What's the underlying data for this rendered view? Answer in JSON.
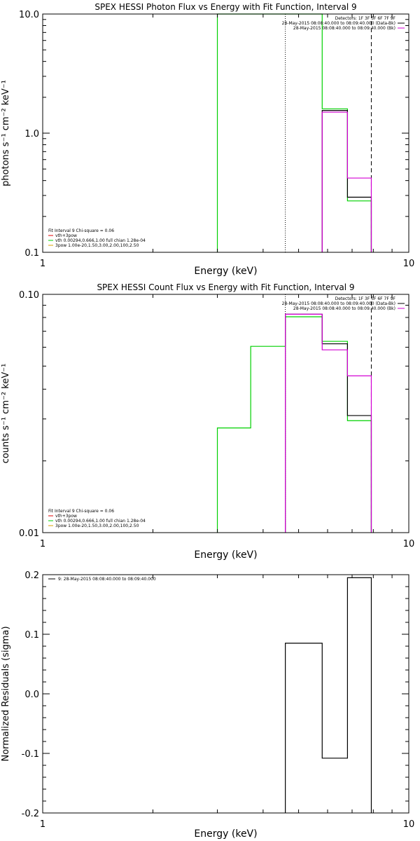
{
  "colors": {
    "background": "#ffffff",
    "axes": "#000000",
    "data_line": "#000000",
    "background_line": "#d400d4",
    "model_line": "#00d000",
    "vth_line": "#e00000",
    "pow_line": "#d8a000"
  },
  "chart_data": [
    {
      "type": "line",
      "title": "SPEX HESSI Photon Flux vs Energy with Fit Function, Interval 9",
      "xlabel": "Energy (keV)",
      "ylabel": "photons s⁻¹ cm⁻² keV⁻¹",
      "x_scale": "log",
      "y_scale": "log",
      "xlim": [
        1,
        10
      ],
      "ylim": [
        0.1,
        10
      ],
      "x_ticks": [
        1,
        10
      ],
      "x_tick_labels": [
        "1",
        "10"
      ],
      "y_ticks": [
        0.1,
        1,
        10
      ],
      "y_tick_labels": [
        "0.1",
        "1.0",
        "10.0"
      ],
      "grid": false,
      "legend_top_right": {
        "position": "top-right",
        "entries": [
          {
            "label": "Detectors: 1F 3F 5F 6F 7F 9F",
            "color": null
          },
          {
            "label": "28-May-2015 08:08:40.000 to 08:09:40.000 (Data-Bk)",
            "color": "#000000"
          },
          {
            "label": "28-May-2015 08:08:40.000 to 08:09:40.000 (Bk)",
            "color": "#d400d4"
          }
        ]
      },
      "legend_bottom_left": {
        "position": "bottom-left",
        "entries": [
          {
            "label": "Fit Interval 9   Chi-square = 0.06",
            "color": null
          },
          {
            "label": "vth+3pow",
            "color": "#e00000"
          },
          {
            "label": "vth 0.00294,0.666,1.00  full chian 1.28e-04",
            "color": "#00d000"
          },
          {
            "label": "3pow 1.00e-20,1.50,3.00,2.00,100,2.50",
            "color": "#d8a000"
          }
        ]
      },
      "vlines": [
        {
          "x": 4.6,
          "style": "dotted",
          "color": "#000000"
        },
        {
          "x": 7.9,
          "style": "dashed",
          "color": "#000000"
        }
      ],
      "series": [
        {
          "role": "model",
          "color": "#00d000",
          "edges": [
            3.0,
            4.6,
            5.8,
            6.8,
            7.9
          ],
          "values": [
            10,
            10,
            1.6,
            0.27
          ]
        },
        {
          "role": "data",
          "color": "#000000",
          "edges": [
            5.8,
            6.8,
            7.9
          ],
          "values": [
            1.55,
            0.29
          ]
        },
        {
          "role": "background",
          "color": "#d400d4",
          "edges": [
            5.8,
            6.8,
            7.9
          ],
          "values": [
            1.5,
            0.42
          ]
        }
      ]
    },
    {
      "type": "line",
      "title": "SPEX HESSI Count Flux vs Energy with Fit Function, Interval 9",
      "xlabel": "Energy (keV)",
      "ylabel": "counts s⁻¹ cm⁻² keV⁻¹",
      "x_scale": "log",
      "y_scale": "log",
      "xlim": [
        1,
        10
      ],
      "ylim": [
        0.01,
        0.1
      ],
      "x_ticks": [
        1,
        10
      ],
      "x_tick_labels": [
        "1",
        "10"
      ],
      "y_ticks": [
        0.01,
        0.1
      ],
      "y_tick_labels": [
        "0.01",
        "0.10"
      ],
      "grid": false,
      "legend_top_right": {
        "position": "top-right",
        "entries": [
          {
            "label": "Detectors: 1F 3F 5F 6F 7F 9F",
            "color": null
          },
          {
            "label": "28-May-2015 08:08:40.000 to 08:09:40.000 (Data-Bk)",
            "color": "#000000"
          },
          {
            "label": "28-May-2015 08:08:40.000 to 08:09:40.000 (Bk)",
            "color": "#d400d4"
          }
        ]
      },
      "legend_bottom_left": {
        "position": "bottom-left",
        "entries": [
          {
            "label": "Fit Interval 9   Chi-square = 0.06",
            "color": null
          },
          {
            "label": "vth+3pow",
            "color": "#e00000"
          },
          {
            "label": "vth 0.00294,0.666,1.00  full chian 1.28e-04",
            "color": "#00d000"
          },
          {
            "label": "3pow 1.00e-20,1.50,3.00,2.00,100,2.50",
            "color": "#d8a000"
          }
        ]
      },
      "vlines": [
        {
          "x": 4.6,
          "style": "dotted",
          "color": "#000000"
        },
        {
          "x": 7.9,
          "style": "dashed",
          "color": "#000000"
        }
      ],
      "series": [
        {
          "role": "model",
          "color": "#00d000",
          "edges": [
            3.0,
            3.7,
            4.6,
            5.8,
            6.8,
            7.9
          ],
          "values": [
            0.0275,
            0.0605,
            0.0805,
            0.0635,
            0.0295
          ]
        },
        {
          "role": "data",
          "color": "#000000",
          "edges": [
            4.6,
            5.8,
            6.8,
            7.9
          ],
          "values": [
            0.0825,
            0.062,
            0.031
          ]
        },
        {
          "role": "background",
          "color": "#d400d4",
          "edges": [
            4.6,
            5.8,
            6.8,
            7.9
          ],
          "values": [
            0.0825,
            0.0585,
            0.0455
          ]
        }
      ]
    },
    {
      "type": "line",
      "title": "",
      "xlabel": "Energy (keV)",
      "ylabel": "Normalized Residuals (sigma)",
      "x_scale": "log",
      "y_scale": "linear",
      "xlim": [
        1,
        10
      ],
      "ylim": [
        -0.2,
        0.2
      ],
      "x_ticks": [
        1,
        10
      ],
      "x_tick_labels": [
        "1",
        "10"
      ],
      "y_ticks": [
        -0.2,
        -0.1,
        0.0,
        0.1,
        0.2
      ],
      "y_tick_labels": [
        "-0.2",
        "-0.1",
        "0.0",
        "0.1",
        "0.2"
      ],
      "grid": false,
      "legend_top_left": {
        "position": "top-left",
        "entries": [
          {
            "label": "9: 28-May-2015 08:08:40.000 to 08:09:40.000",
            "color": "#000000"
          }
        ]
      },
      "vlines": [],
      "series": [
        {
          "role": "residuals",
          "color": "#000000",
          "edges": [
            4.6,
            5.8,
            6.8,
            7.9
          ],
          "values": [
            0.085,
            -0.108,
            0.195
          ]
        }
      ]
    }
  ]
}
